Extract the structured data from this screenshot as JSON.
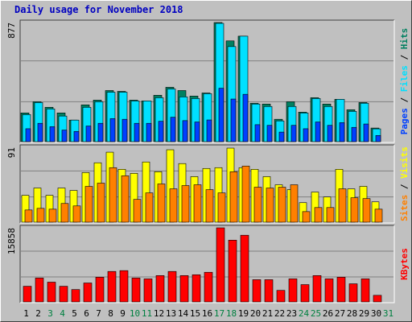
{
  "title": "Daily usage for November 2018",
  "legend_separator": " / ",
  "chart_data": [
    {
      "type": "bar",
      "ylim": [
        0,
        877
      ],
      "yticks": [
        877
      ],
      "grid": true,
      "series": [
        {
          "name": "Hits",
          "color": "#008060",
          "values": [
            207,
            290,
            249,
            207,
            154,
            267,
            302,
            373,
            367,
            302,
            296,
            338,
            397,
            373,
            332,
            355,
            877,
            741,
            776,
            279,
            273,
            160,
            290,
            213,
            320,
            273,
            308,
            231,
            284,
            95,
            null
          ]
        },
        {
          "name": "Files",
          "color": "#00e0ff",
          "values": [
            195,
            284,
            237,
            184,
            154,
            249,
            290,
            361,
            361,
            296,
            296,
            320,
            385,
            326,
            314,
            350,
            871,
            699,
            776,
            273,
            255,
            148,
            255,
            207,
            314,
            255,
            308,
            219,
            279,
            89,
            null
          ]
        },
        {
          "name": "Pages",
          "color": "#0040ff",
          "values": [
            90,
            130,
            105,
            80,
            70,
            110,
            130,
            165,
            160,
            130,
            130,
            145,
            175,
            150,
            140,
            155,
            390,
            310,
            345,
            120,
            115,
            65,
            115,
            90,
            140,
            115,
            135,
            100,
            125,
            40,
            null
          ]
        }
      ]
    },
    {
      "type": "bar",
      "ylim": [
        0,
        91
      ],
      "yticks": [
        91
      ],
      "grid": true,
      "series": [
        {
          "name": "Visits",
          "color": "#ffff00",
          "values": [
            32,
            41,
            32,
            41,
            38,
            60,
            72,
            85,
            64,
            59,
            73,
            61,
            88,
            71,
            55,
            65,
            66,
            90,
            66,
            64,
            55,
            45,
            39,
            23,
            36,
            30,
            64,
            40,
            43,
            24,
            null
          ]
        },
        {
          "name": "Sites",
          "color": "#ff8000",
          "values": [
            14,
            16,
            15,
            22,
            19,
            43,
            47,
            66,
            56,
            27,
            35,
            46,
            40,
            44,
            45,
            39,
            35,
            61,
            68,
            42,
            41,
            42,
            45,
            12,
            17,
            17,
            40,
            29,
            28,
            15,
            null
          ]
        }
      ]
    },
    {
      "type": "bar",
      "ylim": [
        0,
        15858
      ],
      "yticks": [
        15858
      ],
      "grid": true,
      "categories": [
        "1",
        "2",
        "3",
        "4",
        "5",
        "6",
        "7",
        "8",
        "9",
        "10",
        "11",
        "12",
        "13",
        "14",
        "15",
        "16",
        "17",
        "18",
        "19",
        "20",
        "21",
        "22",
        "23",
        "24",
        "25",
        "26",
        "27",
        "28",
        "29",
        "30",
        "31"
      ],
      "category_colors": [
        "#000000",
        "#000000",
        "#008040",
        "#008040",
        "#000000",
        "#000000",
        "#000000",
        "#000000",
        "#000000",
        "#008040",
        "#008040",
        "#000000",
        "#000000",
        "#000000",
        "#000000",
        "#000000",
        "#008040",
        "#008040",
        "#000000",
        "#000000",
        "#000000",
        "#000000",
        "#000000",
        "#008040",
        "#008040",
        "#000000",
        "#000000",
        "#000000",
        "#000000",
        "#000000",
        "#008040"
      ],
      "series": [
        {
          "name": "KBytes",
          "color": "#ff0000",
          "values": [
            3207,
            4989,
            4098,
            3207,
            2495,
            3920,
            5168,
            6414,
            6593,
            4989,
            4811,
            5524,
            6414,
            5524,
            5702,
            6236,
            15858,
            13185,
            14254,
            4633,
            4633,
            2316,
            4811,
            3564,
            5524,
            4811,
            5168,
            3742,
            4811,
            1247,
            null
          ]
        }
      ]
    }
  ]
}
